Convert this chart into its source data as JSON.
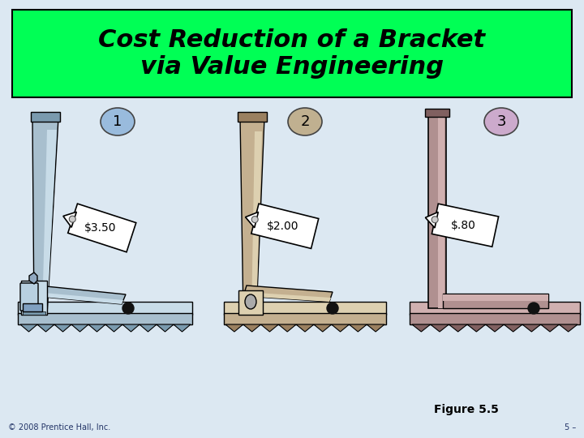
{
  "title": "Cost Reduction of a Bracket\nvia Value Engineering",
  "title_bg": "#00ff55",
  "title_fontsize": 22,
  "bg_color": "#dce8f2",
  "figure_caption": "Figure 5.5",
  "copyright": "© 2008 Prentice Hall, Inc.",
  "page_num": "5 –",
  "bracket1": {
    "label": "1",
    "bubble_color": "#99bbdd",
    "color_main": "#a8bfce",
    "color_dark": "#7a9aae",
    "color_light": "#c8dce8",
    "price": "$3.50"
  },
  "bracket2": {
    "label": "2",
    "bubble_color": "#c0b090",
    "color_main": "#c4b090",
    "color_dark": "#9a8060",
    "color_light": "#ddd0b0",
    "price": "$2.00"
  },
  "bracket3": {
    "label": "3",
    "bubble_color": "#ccaacc",
    "color_main": "#b09090",
    "color_dark": "#806060",
    "color_light": "#d0b0b0",
    "price": "$.80"
  }
}
